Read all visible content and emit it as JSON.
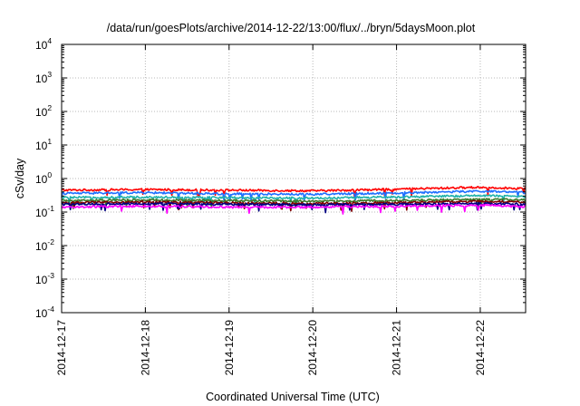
{
  "chart_data": {
    "type": "line",
    "title": "/data/run/goesPlots/archive/2014-12-22/13:00/flux/../bryn/5daysMoon.plot",
    "xlabel": "Coordinated Universal Time (UTC)",
    "ylabel": "cSv/day",
    "yscale": "log",
    "ylim_exponents": [
      -4,
      4
    ],
    "y_ticks": [
      {
        "base": "10",
        "exp": "4"
      },
      {
        "base": "10",
        "exp": "3"
      },
      {
        "base": "10",
        "exp": "2"
      },
      {
        "base": "10",
        "exp": "1"
      },
      {
        "base": "10",
        "exp": "0"
      },
      {
        "base": "10",
        "exp": "-1"
      },
      {
        "base": "10",
        "exp": "-2"
      },
      {
        "base": "10",
        "exp": "-3"
      },
      {
        "base": "10",
        "exp": "-4"
      }
    ],
    "x_ticks": [
      "2014-12-17",
      "2014-12-18",
      "2014-12-19",
      "2014-12-20",
      "2014-12-21",
      "2014-12-22"
    ],
    "xlim": [
      "2014-12-17T00:00",
      "2014-12-22T13:00"
    ],
    "grid": true,
    "series": [
      {
        "color": "#ff0000",
        "x": [
          "2014-12-17",
          "2014-12-18",
          "2014-12-19",
          "2014-12-20",
          "2014-12-21",
          "2014-12-22",
          "2014-12-22T13:00"
        ],
        "values": [
          0.45,
          0.47,
          0.45,
          0.43,
          0.48,
          0.55,
          0.5
        ]
      },
      {
        "color": "#1e6fff",
        "x": [
          "2014-12-17",
          "2014-12-18",
          "2014-12-19",
          "2014-12-20",
          "2014-12-21",
          "2014-12-22",
          "2014-12-22T13:00"
        ],
        "values": [
          0.36,
          0.38,
          0.35,
          0.34,
          0.37,
          0.42,
          0.38
        ]
      },
      {
        "color": "#20b2aa",
        "x": [
          "2014-12-17",
          "2014-12-18",
          "2014-12-19",
          "2014-12-20",
          "2014-12-21",
          "2014-12-22",
          "2014-12-22T13:00"
        ],
        "values": [
          0.27,
          0.28,
          0.27,
          0.26,
          0.28,
          0.31,
          0.29
        ]
      },
      {
        "color": "#3a7a2a",
        "x": [
          "2014-12-17",
          "2014-12-18",
          "2014-12-19",
          "2014-12-20",
          "2014-12-21",
          "2014-12-22",
          "2014-12-22T13:00"
        ],
        "values": [
          0.22,
          0.23,
          0.22,
          0.21,
          0.22,
          0.24,
          0.23
        ]
      },
      {
        "color": "#800000",
        "x": [
          "2014-12-17",
          "2014-12-18",
          "2014-12-19",
          "2014-12-20",
          "2014-12-21",
          "2014-12-22",
          "2014-12-22T13:00"
        ],
        "values": [
          0.19,
          0.2,
          0.19,
          0.18,
          0.19,
          0.21,
          0.2
        ]
      },
      {
        "color": "#000080",
        "x": [
          "2014-12-17",
          "2014-12-18",
          "2014-12-19",
          "2014-12-20",
          "2014-12-21",
          "2014-12-22",
          "2014-12-22T13:00"
        ],
        "values": [
          0.17,
          0.18,
          0.17,
          0.165,
          0.17,
          0.18,
          0.17
        ]
      },
      {
        "color": "#ff00ff",
        "x": [
          "2014-12-17",
          "2014-12-18",
          "2014-12-19",
          "2014-12-20",
          "2014-12-21",
          "2014-12-22",
          "2014-12-22T13:00"
        ],
        "values": [
          0.14,
          0.15,
          0.14,
          0.14,
          0.15,
          0.16,
          0.145
        ]
      }
    ]
  }
}
